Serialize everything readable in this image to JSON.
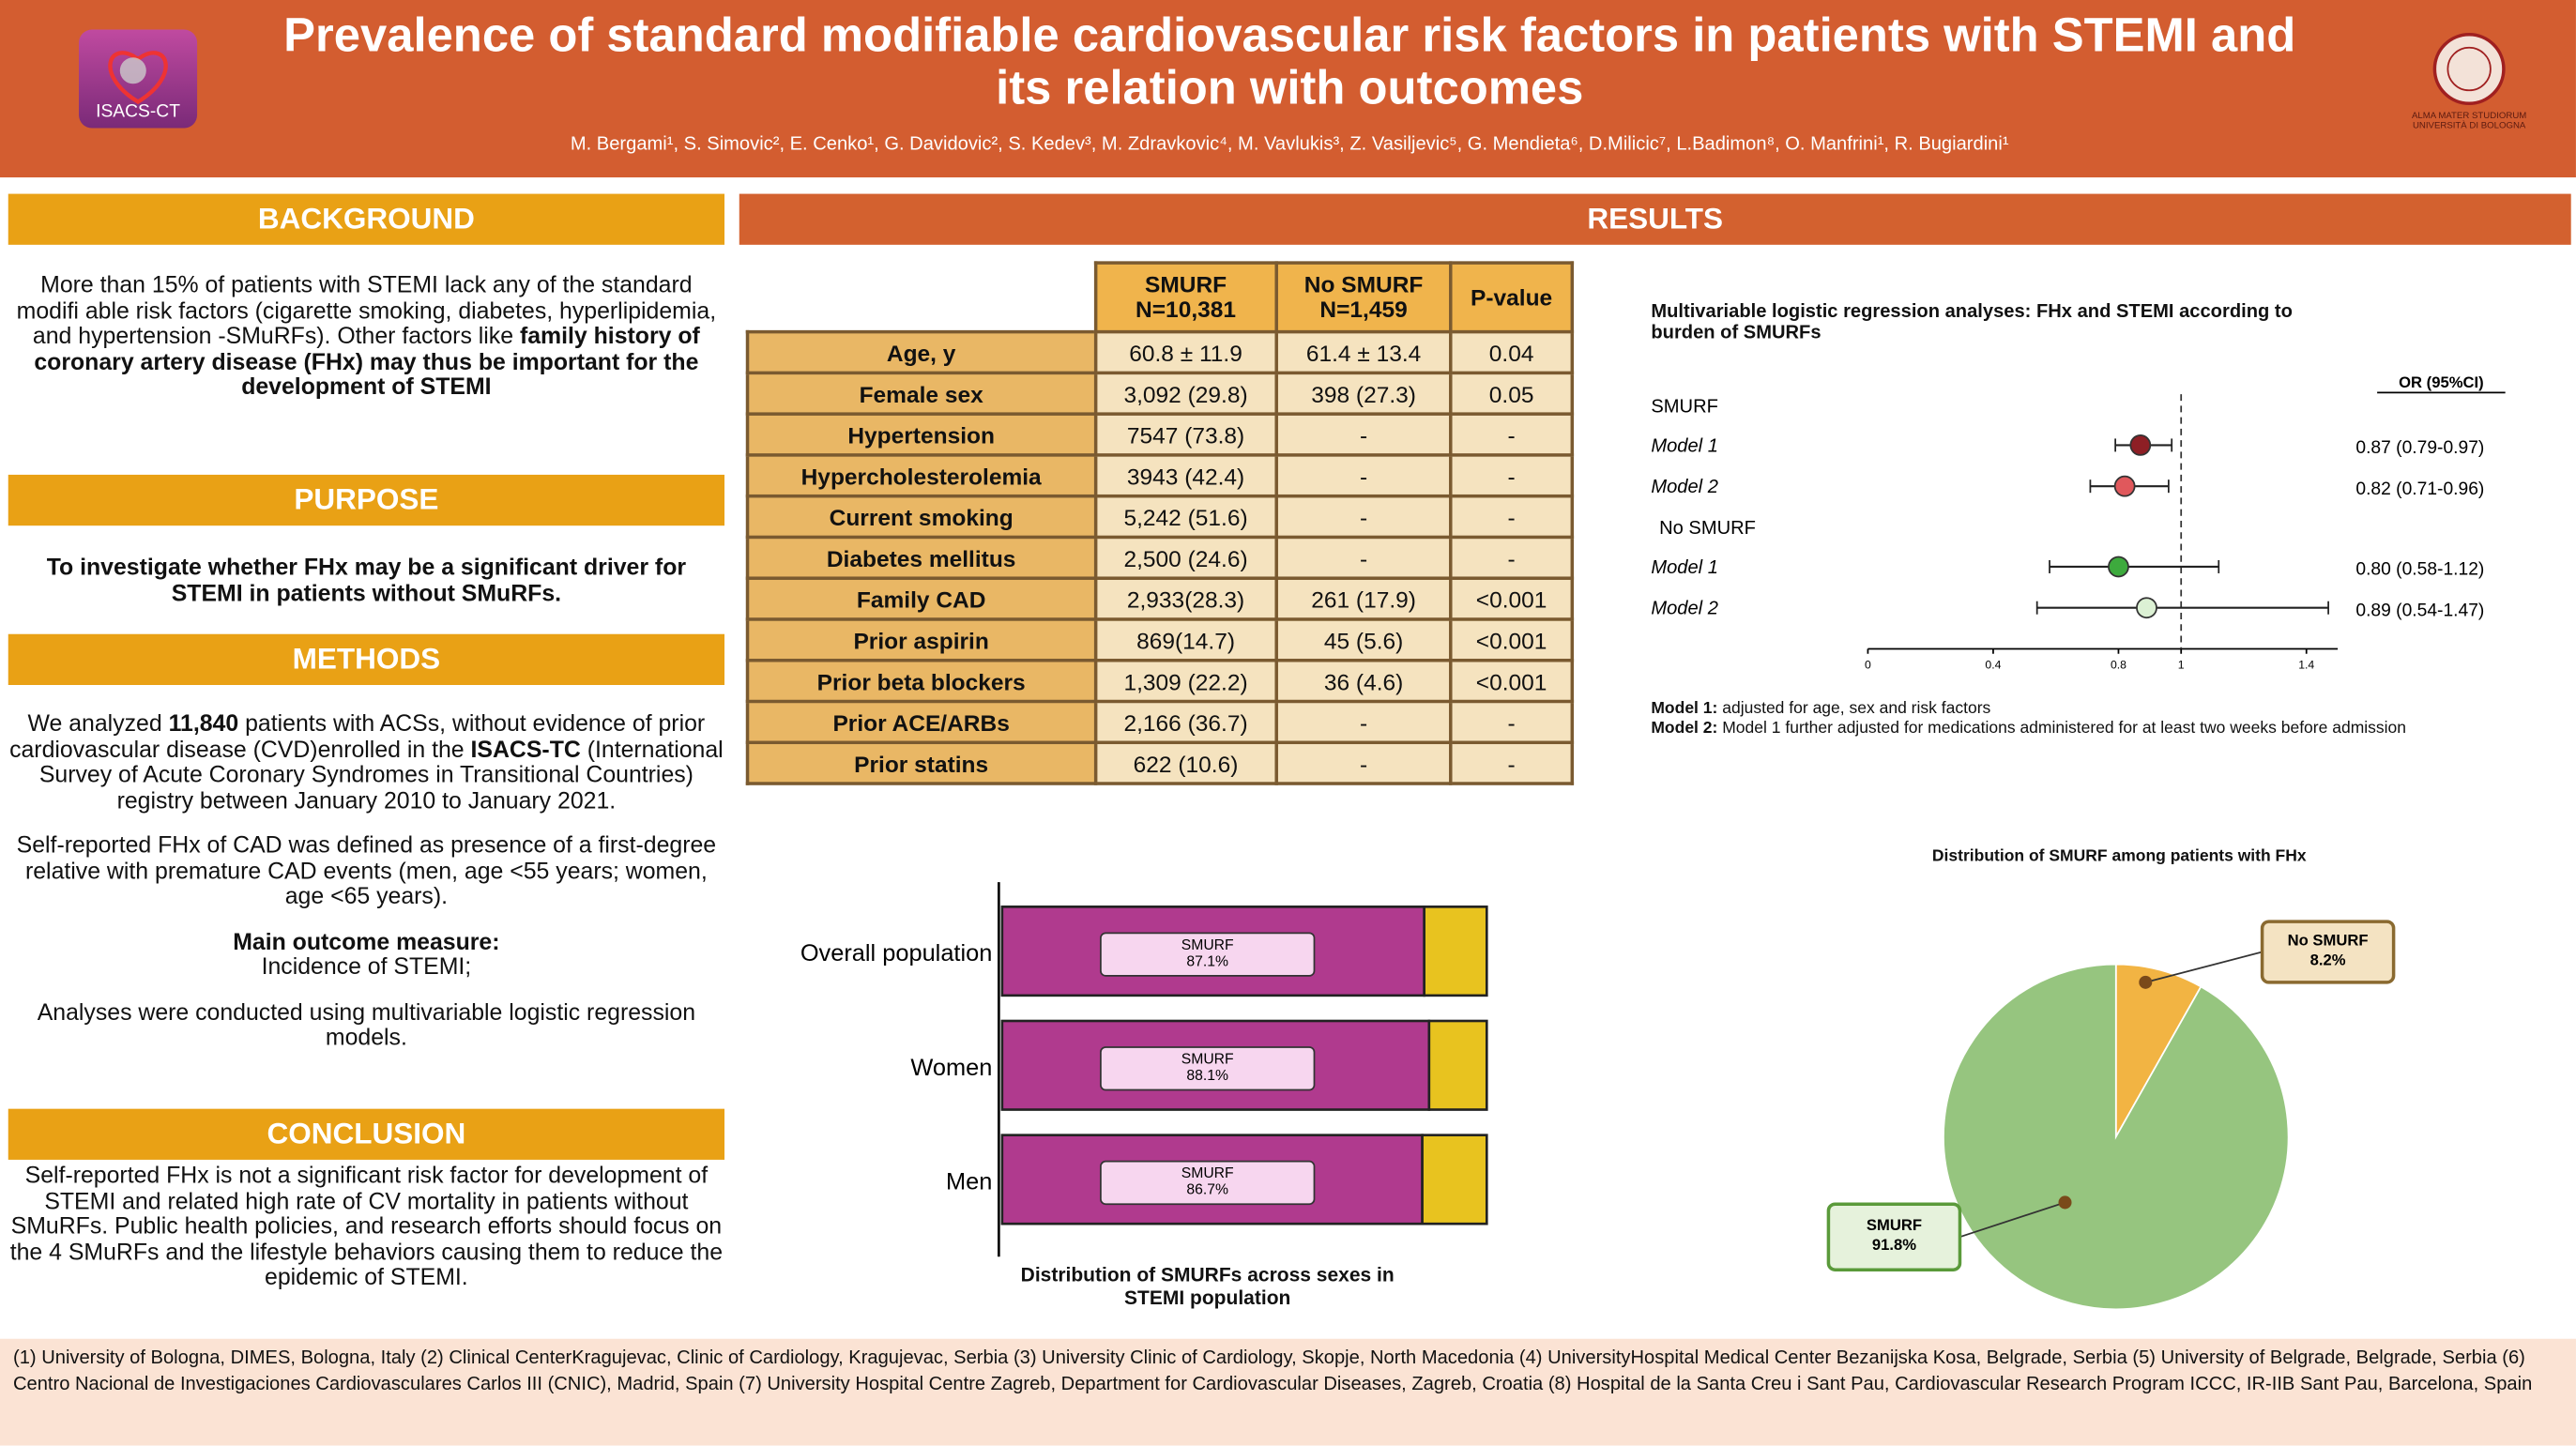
{
  "header": {
    "title": "Prevalence of standard modifiable cardiovascular risk factors in patients with STEMI and its relation with outcomes",
    "authors": "M. Bergami¹, S. Simovic², E. Cenko¹, G. Davidovic², S. Kedev³, M. Zdravkovic⁴, M. Vavlukis³, Z. Vasiljevic⁵, G. Mendieta⁶, D.Milicic⁷, L.Badimon⁸, O. Manfrini¹, R. Bugiardini¹",
    "logo_left": "ISACS-CT",
    "logo_right": [
      "ALMA MATER STUDIORUM",
      "UNIVERSITÀ DI BOLOGNA"
    ]
  },
  "background": {
    "heading": "BACKGROUND",
    "text": [
      "More than 15% of patients with STEMI lack any of the standard modifi able risk factors (cigarette smoking, diabetes, hyperlipidemia, and hypertension -SMuRFs). Other factors like ",
      "family history of coronary artery disease (FHx) may thus be important for the development of STEMI"
    ]
  },
  "purpose": {
    "heading": "PURPOSE",
    "text": "To investigate whether FHx may be a significant driver for STEMI in patients without SMuRFs."
  },
  "methods": {
    "heading": "METHODS",
    "paragraphs": [
      [
        "We analyzed ",
        "11,840",
        " patients with ACSs, without evidence of prior cardiovascular disease (CVD)enrolled in the ",
        "ISACS-TC",
        " (International Survey of Acute Coronary Syndromes in Transitional Countries) registry between January 2010 to January 2021."
      ],
      [
        "Self-reported FHx of CAD  was defined as presence of a first-degree relative with premature CAD events (men, age <55 years; women, age <65 years)."
      ],
      [
        "Main outcome measure:",
        "Incidence of STEMI;"
      ],
      [
        "Analyses were conducted using multivariable logistic regression models."
      ]
    ]
  },
  "conclusion": {
    "heading": "CONCLUSION",
    "text": "Self-reported FHx is not a significant risk factor for development of STEMI and related high rate of CV mortality in patients without SMuRFs. Public health policies, and research efforts should focus on the 4 SMuRFs and the lifestyle behaviors causing them to reduce the epidemic of STEMI."
  },
  "results": {
    "heading": "RESULTS",
    "table": {
      "columns": [
        [
          "SMURF",
          "N=10,381"
        ],
        [
          "No SMURF",
          "N=1,459"
        ],
        [
          "P-value"
        ]
      ],
      "rows": [
        [
          "Age, y",
          "60.8 ± 11.9",
          "61.4 ± 13.4",
          "0.04"
        ],
        [
          "Female sex",
          "3,092 (29.8)",
          "398 (27.3)",
          "0.05"
        ],
        [
          "Hypertension",
          "7547 (73.8)",
          "-",
          "-"
        ],
        [
          "Hypercholesterolemia",
          "3943 (42.4)",
          "-",
          "-"
        ],
        [
          "Current smoking",
          "5,242 (51.6)",
          "-",
          "-"
        ],
        [
          "Diabetes mellitus",
          "2,500 (24.6)",
          "-",
          "-"
        ],
        [
          "Family CAD",
          "2,933(28.3)",
          "261 (17.9)",
          "<0.001"
        ],
        [
          "Prior aspirin",
          "869(14.7)",
          "45 (5.6)",
          "<0.001"
        ],
        [
          "Prior beta blockers",
          "1,309 (22.2)",
          "36 (4.6)",
          "<0.001"
        ],
        [
          "Prior ACE/ARBs",
          "2,166 (36.7)",
          "-",
          "-"
        ],
        [
          "Prior statins",
          "622 (10.6)",
          "-",
          "-"
        ]
      ]
    },
    "forest": {
      "type": "forest",
      "title": "Multivariable logistic regression analyses: FHx and STEMI according to burden of SMURFs",
      "column_label": "OR (95%CI)",
      "xlim": [
        0,
        1.5
      ],
      "xticks": [
        0,
        0.4,
        0.8,
        1,
        1.4
      ],
      "reference": 1,
      "groups": [
        {
          "name": "SMURF",
          "rows": [
            {
              "name": "Model 1",
              "color": "#8e1f25",
              "values": [
                0.87,
                0.79,
                0.97
              ],
              "value_label": "0.87 (0.79-0.97)"
            },
            {
              "name": "Model 2",
              "color": "#e0585c",
              "values": [
                0.82,
                0.71,
                0.96
              ],
              "value_label": "0.82 (0.71-0.96)"
            }
          ]
        },
        {
          "name": "No SMURF",
          "rows": [
            {
              "name": "Model 1",
              "color": "#3daa3d",
              "values": [
                0.8,
                0.58,
                1.12
              ],
              "value_label": "0.80 (0.58-1.12)"
            },
            {
              "name": "Model 2",
              "color": "#dcf1d4",
              "values": [
                0.89,
                0.54,
                1.47
              ],
              "value_label": "0.89 (0.54-1.47)"
            }
          ]
        }
      ],
      "notes": [
        [
          "Model 1:",
          " adjusted for age, sex and risk factors"
        ],
        [
          "Model 2:",
          " Model 1 further adjusted for medications administered for at least two weeks before admission"
        ]
      ]
    },
    "bars": {
      "type": "bar",
      "orientation": "horizontal",
      "stacked": true,
      "title": "Distribution of SMURFs across sexes in STEMI population",
      "categories": [
        "Overall population",
        "Women",
        "Men"
      ],
      "xlim": [
        0,
        100
      ],
      "series": [
        {
          "name": "SMURF",
          "color": "#b03a8e",
          "values": [
            87.1,
            88.1,
            86.7
          ],
          "value_labels": [
            "87.1%",
            "88.1%",
            "86.7%"
          ]
        },
        {
          "name": "No SMURF",
          "color": "#e8c31f",
          "values": [
            12.9,
            11.9,
            13.3
          ]
        }
      ]
    },
    "pie": {
      "type": "pie",
      "title": "Distribution of SMURF among patients with FHx",
      "categories": [
        "No SMURF",
        "SMURF"
      ],
      "values": [
        8.2,
        91.8
      ],
      "value_labels": [
        "8.2%",
        "91.8%"
      ],
      "colors": [
        "#f2b443",
        "#96c57f"
      ]
    }
  },
  "footer": "(1) University of Bologna, DIMES, Bologna, Italy (2) Clinical CenterKragujevac, Clinic of Cardiology, Kragujevac, Serbia (3) University Clinic of Cardiology, Skopje, North Macedonia (4) UniversityHospital Medical Center Bezanijska Kosa, Belgrade, Serbia (5) University of Belgrade, Belgrade, Serbia (6) Centro Nacional de Investigaciones Cardiovasculares Carlos III (CNIC), Madrid, Spain (7) University Hospital Centre Zagreb, Department for Cardiovascular Diseases, Zagreb, Croatia (8) Hospital de la Santa Creu i Sant Pau, Cardiovascular Research Program ICCC, IR-IIB Sant Pau, Barcelona, Spain"
}
